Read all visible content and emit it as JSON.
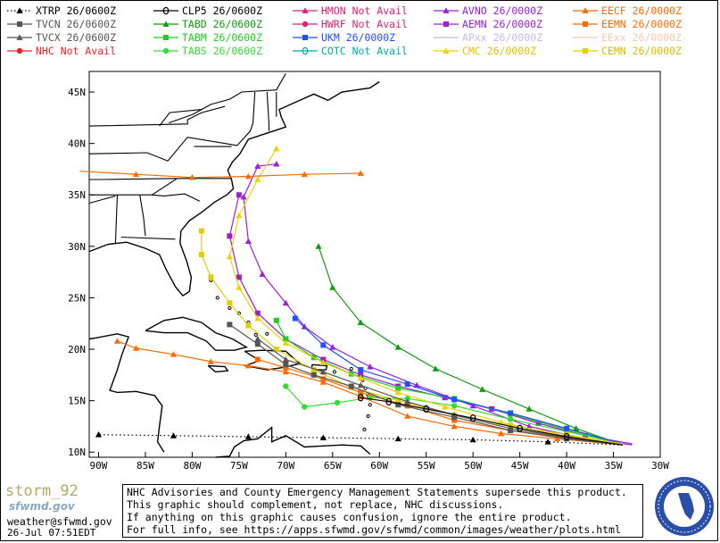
{
  "legend": [
    {
      "label": "XTRP 26/0600Z",
      "color": "#000000",
      "marker": "triangle",
      "dash": "dotted",
      "label_color": "#000000"
    },
    {
      "label": "CLP5 26/0600Z",
      "color": "#000000",
      "marker": "theta",
      "dash": "solid",
      "label_color": "#000000"
    },
    {
      "label": "HMON Not Avail",
      "color": "#e0207a",
      "marker": "triangle",
      "dash": "solid",
      "label_color": "#e0207a"
    },
    {
      "label": "AVNO 26/0000Z",
      "color": "#9b1fd8",
      "marker": "triangle",
      "dash": "solid",
      "label_color": "#9b1fd8"
    },
    {
      "label": "EECF 26/0000Z",
      "color": "#ff6a00",
      "marker": "triangle",
      "dash": "solid",
      "label_color": "#ff6a00"
    },
    {
      "label": "TVCN 26/0600Z",
      "color": "#555555",
      "marker": "square",
      "dash": "solid",
      "label_color": "#555555"
    },
    {
      "label": "TABD 26/0600Z",
      "color": "#0f9a0f",
      "marker": "triangle",
      "dash": "solid",
      "label_color": "#0f9a0f"
    },
    {
      "label": "HWRF Not Avail",
      "color": "#e0207a",
      "marker": "circle",
      "dash": "solid",
      "label_color": "#e0207a"
    },
    {
      "label": "AEMN 26/0000Z",
      "color": "#9b1fd8",
      "marker": "square",
      "dash": "solid",
      "label_color": "#9b1fd8"
    },
    {
      "label": "EEMN 26/0000Z",
      "color": "#ff6a00",
      "marker": "square",
      "dash": "solid",
      "label_color": "#ff6a00"
    },
    {
      "label": "TVCX 26/0600Z",
      "color": "#555555",
      "marker": "triangle",
      "dash": "solid",
      "label_color": "#555555"
    },
    {
      "label": "TABM 26/0600Z",
      "color": "#22cc22",
      "marker": "square",
      "dash": "solid",
      "label_color": "#22cc22"
    },
    {
      "label": "UKM  26/0000Z",
      "color": "#1f4fff",
      "marker": "square",
      "dash": "solid",
      "label_color": "#1f4fff"
    },
    {
      "label": "APxx 26/0000Z",
      "color": "#c8b8e8",
      "marker": "none",
      "dash": "solid",
      "label_color": "#c8b8e8"
    },
    {
      "label": "EExx 26/0000Z",
      "color": "#f5c8b0",
      "marker": "none",
      "dash": "solid",
      "label_color": "#f5c8b0"
    },
    {
      "label": "NHC Not Avail",
      "color": "#ee2222",
      "marker": "circle",
      "dash": "solid",
      "label_color": "#ee2222"
    },
    {
      "label": "TABS 26/0600Z",
      "color": "#33dd33",
      "marker": "circle",
      "dash": "solid",
      "label_color": "#33dd33"
    },
    {
      "label": "COTC Not Avail",
      "color": "#00aaaa",
      "marker": "theta",
      "dash": "solid",
      "label_color": "#00aaaa"
    },
    {
      "label": "CMC  26/0000Z",
      "color": "#f0d000",
      "marker": "triangle",
      "dash": "solid",
      "label_color": "#e0c000"
    },
    {
      "label": "CEMN 26/0000Z",
      "color": "#e0d000",
      "marker": "square",
      "dash": "solid",
      "label_color": "#d0c000"
    }
  ],
  "map": {
    "lat_labels": [
      "45N",
      "40N",
      "35N",
      "30N",
      "25N",
      "20N",
      "15N",
      "10N"
    ],
    "lon_labels": [
      "90W",
      "85W",
      "80W",
      "75W",
      "70W",
      "65W",
      "60W",
      "55W",
      "50W",
      "45W",
      "40W",
      "35W",
      "30W"
    ],
    "lon_range": [
      -91,
      -30
    ],
    "lat_range": [
      9.5,
      47
    ],
    "tracks": [
      {
        "model": "AVNO",
        "color": "#9b1fd8",
        "marker": "triangle",
        "points": [
          [
            -33,
            10.7
          ],
          [
            -38,
            11.3
          ],
          [
            -44,
            12.5
          ],
          [
            -50,
            14.5
          ],
          [
            -56,
            16.5
          ],
          [
            -61,
            18.3
          ],
          [
            -65,
            20.2
          ],
          [
            -68,
            22.2
          ],
          [
            -70,
            24.5
          ],
          [
            -72.5,
            27.3
          ],
          [
            -74,
            30.5
          ],
          [
            -74.5,
            34.8
          ],
          [
            -73,
            37.8
          ],
          [
            -71,
            38
          ]
        ]
      },
      {
        "model": "AEMN",
        "color": "#9b1fd8",
        "marker": "square",
        "points": [
          [
            -33,
            10.8
          ],
          [
            -38,
            11.6
          ],
          [
            -43,
            12.8
          ],
          [
            -48,
            14.2
          ],
          [
            -53,
            15.3
          ],
          [
            -58,
            16.4
          ],
          [
            -62,
            17.5
          ],
          [
            -66,
            19
          ],
          [
            -70,
            21
          ],
          [
            -73,
            23.5
          ],
          [
            -75,
            27
          ],
          [
            -76,
            31
          ],
          [
            -75,
            35
          ]
        ]
      },
      {
        "model": "TABD",
        "color": "#0f9a0f",
        "marker": "triangle",
        "points": [
          [
            -34,
            10.7
          ],
          [
            -39,
            12.3
          ],
          [
            -44,
            14.2
          ],
          [
            -49,
            16.1
          ],
          [
            -54,
            18.1
          ],
          [
            -58,
            20.2
          ],
          [
            -62,
            22.6
          ],
          [
            -65,
            26
          ],
          [
            -66.5,
            30
          ]
        ]
      },
      {
        "model": "TABM",
        "color": "#22cc22",
        "marker": "square",
        "points": [
          [
            -34,
            10.8
          ],
          [
            -40,
            12.2
          ],
          [
            -46,
            13.7
          ],
          [
            -52,
            15.2
          ],
          [
            -58,
            16.2
          ],
          [
            -63,
            17.6
          ],
          [
            -67,
            19.2
          ],
          [
            -70,
            21
          ],
          [
            -71,
            22.8
          ]
        ]
      },
      {
        "model": "TABS",
        "color": "#33dd33",
        "marker": "circle",
        "points": [
          [
            -34,
            10.8
          ],
          [
            -40,
            12
          ],
          [
            -46,
            13.2
          ],
          [
            -52,
            14.5
          ],
          [
            -57,
            15.2
          ],
          [
            -61,
            15.3
          ],
          [
            -64.5,
            14.8
          ],
          [
            -68,
            14.4
          ],
          [
            -70,
            16.4
          ]
        ]
      },
      {
        "model": "UKM",
        "color": "#1f4fff",
        "marker": "square",
        "points": [
          [
            -34,
            10.8
          ],
          [
            -40,
            12.3
          ],
          [
            -46,
            13.8
          ],
          [
            -52,
            15.1
          ],
          [
            -57,
            16.6
          ],
          [
            -62,
            18
          ],
          [
            -66,
            20.4
          ],
          [
            -69,
            23
          ]
        ]
      },
      {
        "model": "CMC",
        "color": "#f0d000",
        "marker": "triangle",
        "points": [
          [
            -34,
            10.8
          ],
          [
            -41,
            11.7
          ],
          [
            -47,
            12.9
          ],
          [
            -53,
            14.4
          ],
          [
            -58,
            15.8
          ],
          [
            -62,
            17.2
          ],
          [
            -66,
            18.7
          ],
          [
            -70,
            20.6
          ],
          [
            -73,
            23
          ],
          [
            -75,
            26
          ],
          [
            -76,
            29
          ],
          [
            -75,
            33
          ],
          [
            -73,
            36.5
          ],
          [
            -71,
            39.5
          ]
        ]
      },
      {
        "model": "CEMN",
        "color": "#e0d000",
        "marker": "square",
        "points": [
          [
            -34,
            10.8
          ],
          [
            -40,
            11.7
          ],
          [
            -46,
            12.6
          ],
          [
            -52,
            13.6
          ],
          [
            -58,
            15
          ],
          [
            -63,
            16.3
          ],
          [
            -67,
            18
          ],
          [
            -71,
            20
          ],
          [
            -74,
            22.3
          ],
          [
            -76,
            24.5
          ],
          [
            -78,
            27
          ],
          [
            -79,
            29.2
          ],
          [
            -79,
            31.5
          ]
        ]
      },
      {
        "model": "EECF",
        "color": "#ff6a00",
        "marker": "triangle",
        "points": [
          [
            -34,
            10.7
          ],
          [
            -41,
            11.3
          ],
          [
            -47,
            11.8
          ],
          [
            -52,
            12.5
          ],
          [
            -57,
            13.5
          ],
          [
            -62,
            15.4
          ],
          [
            -66,
            16.8
          ],
          [
            -70,
            17.8
          ],
          [
            -74,
            18.4
          ],
          [
            -78,
            18.8
          ],
          [
            -82,
            19.5
          ],
          [
            -86,
            20.1
          ],
          [
            -88,
            20.8
          ]
        ]
      },
      {
        "model": "EEMN",
        "color": "#ff6a00",
        "marker": "square",
        "points": [
          [
            -34,
            10.7
          ],
          [
            -40,
            11.4
          ],
          [
            -46,
            12.1
          ],
          [
            -52,
            13.1
          ],
          [
            -57,
            14.5
          ],
          [
            -62,
            15.8
          ],
          [
            -66,
            17.1
          ],
          [
            -70,
            18.2
          ],
          [
            -73,
            19
          ]
        ]
      },
      {
        "model": "TVCN",
        "color": "#555555",
        "marker": "square",
        "points": [
          [
            -34,
            10.7
          ],
          [
            -40,
            11.3
          ],
          [
            -46,
            12.1
          ],
          [
            -52,
            13.4
          ],
          [
            -58,
            14.6
          ],
          [
            -63,
            16.4
          ],
          [
            -67,
            17.5
          ],
          [
            -70,
            18.5
          ],
          [
            -73,
            20.5
          ],
          [
            -76,
            22.4
          ]
        ]
      },
      {
        "model": "TVCX",
        "color": "#555555",
        "marker": "triangle",
        "points": [
          [
            -34,
            10.7
          ],
          [
            -40,
            11.4
          ],
          [
            -46,
            12.3
          ],
          [
            -52,
            13.6
          ],
          [
            -57,
            14.9
          ],
          [
            -62,
            16.5
          ],
          [
            -66,
            17.8
          ],
          [
            -70,
            19
          ],
          [
            -73,
            21
          ]
        ]
      },
      {
        "model": "CLP5",
        "color": "#000000",
        "marker": "theta",
        "points": [
          [
            -34,
            10.7
          ],
          [
            -40,
            11.5
          ],
          [
            -45,
            12.3
          ],
          [
            -50,
            13.3
          ],
          [
            -55,
            14.2
          ],
          [
            -59,
            14.9
          ],
          [
            -62,
            15.3
          ]
        ]
      },
      {
        "model": "XTRP",
        "color": "#000000",
        "marker": "triangle",
        "dash": "dotted",
        "points": [
          [
            -34,
            10.7
          ],
          [
            -42,
            11
          ],
          [
            -50,
            11.2
          ],
          [
            -58,
            11.3
          ],
          [
            -66,
            11.4
          ],
          [
            -74,
            11.5
          ],
          [
            -82,
            11.6
          ],
          [
            -90,
            11.7
          ]
        ]
      },
      {
        "model": "EECF-north",
        "color": "#ff6a00",
        "marker": "triangle",
        "points": [
          [
            -92,
            37.3
          ],
          [
            -86,
            37
          ],
          [
            -80,
            36.7
          ],
          [
            -74,
            36.8
          ],
          [
            -68,
            37
          ],
          [
            -62,
            37.1
          ]
        ]
      }
    ]
  },
  "notice": {
    "line1": "NHC Advisories and County Emergency Management Statements supersede this product.",
    "line2": "This graphic should complement, not replace, NHC discussions.",
    "line3": "If anything on this graphic causes confusion, ignore the entire product.",
    "line4": "For full info, see  https://apps.sfwmd.gov/sfwmd/common/images/weather/plots.html"
  },
  "footer": {
    "storm": "storm_92",
    "logo_text": "sfwmd.gov",
    "contact": "weather@sfwmd.gov",
    "timestamp": "26-Jul 07:51EDT"
  },
  "colors": {
    "land_outline": "#000000",
    "ocean": "#ffffff",
    "seal_blue": "#2a4fa8"
  }
}
